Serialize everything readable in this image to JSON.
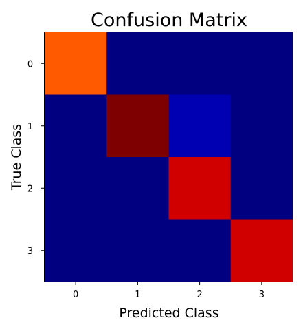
{
  "chart_data": {
    "type": "heatmap",
    "title": "Confusion Matrix",
    "xlabel": "Predicted Class",
    "ylabel": "True Class",
    "x_categories": [
      "0",
      "1",
      "2",
      "3"
    ],
    "y_categories": [
      "0",
      "1",
      "2",
      "3"
    ],
    "colormap": "jet",
    "value_range": [
      0,
      1
    ],
    "values": [
      [
        0.78,
        0.0,
        0.0,
        0.0
      ],
      [
        0.0,
        1.0,
        0.1,
        0.0
      ],
      [
        0.0,
        0.0,
        0.88,
        0.0
      ],
      [
        0.0,
        0.0,
        0.0,
        0.88
      ]
    ],
    "cell_colors": [
      [
        "#ff5a00",
        "#000080",
        "#000080",
        "#000080"
      ],
      [
        "#000080",
        "#7f0000",
        "#0000b2",
        "#000080"
      ],
      [
        "#000080",
        "#000080",
        "#d00000",
        "#000080"
      ],
      [
        "#000080",
        "#000080",
        "#000080",
        "#d00000"
      ]
    ],
    "grid": false,
    "legend": "none"
  }
}
